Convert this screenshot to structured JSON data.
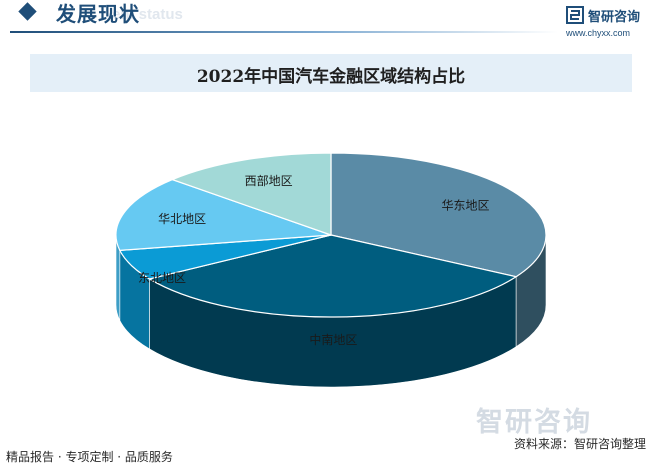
{
  "header": {
    "section_title": "发展现状",
    "ghost_text": "ent status",
    "logo_name": "智研咨询",
    "logo_url": "www.chyxx.com"
  },
  "chart_data": {
    "type": "pie",
    "title": "2022年中国汽车金融区域结构占比",
    "start_angle_deg": -90,
    "direction": "clockwise",
    "categories": [
      "华东地区",
      "中南地区",
      "东北地区",
      "华北地区",
      "西部地区"
    ],
    "values": [
      33.5,
      32.5,
      6.0,
      14.8,
      13.2
    ],
    "colors": [
      "#5a8ba6",
      "#005d7f",
      "#0b9bd5",
      "#66c9f2",
      "#a2d9d7"
    ],
    "side_colors": [
      "#2f4f5f",
      "#013a50",
      "#0674a0",
      "#3e9ec6",
      "#6fb5b2"
    ]
  },
  "watermark": {
    "text": "智研咨询"
  },
  "footer": {
    "left": "精品报告 · 专项定制 · 品质服务",
    "source": "资料来源：智研咨询整理"
  }
}
